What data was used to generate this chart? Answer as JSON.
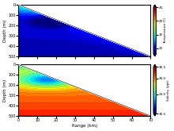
{
  "xlabel": "Range (km)",
  "ylabel1": "Depth (m)",
  "ylabel2": "Depth (m)",
  "cbar_label1": "Temperature (C)",
  "cbar_label2": "Salinity (ppt)",
  "range_max": 70,
  "depth_max": 500,
  "temp_min": 8,
  "temp_max": 25,
  "sal_min": 30.5,
  "sal_max": 36.5,
  "sal_ticks": [
    30.5,
    33.0,
    35.0,
    36.5
  ],
  "temp_ticks": [
    10,
    15,
    20,
    25
  ],
  "figsize": [
    2.2,
    1.65
  ],
  "dpi": 100
}
